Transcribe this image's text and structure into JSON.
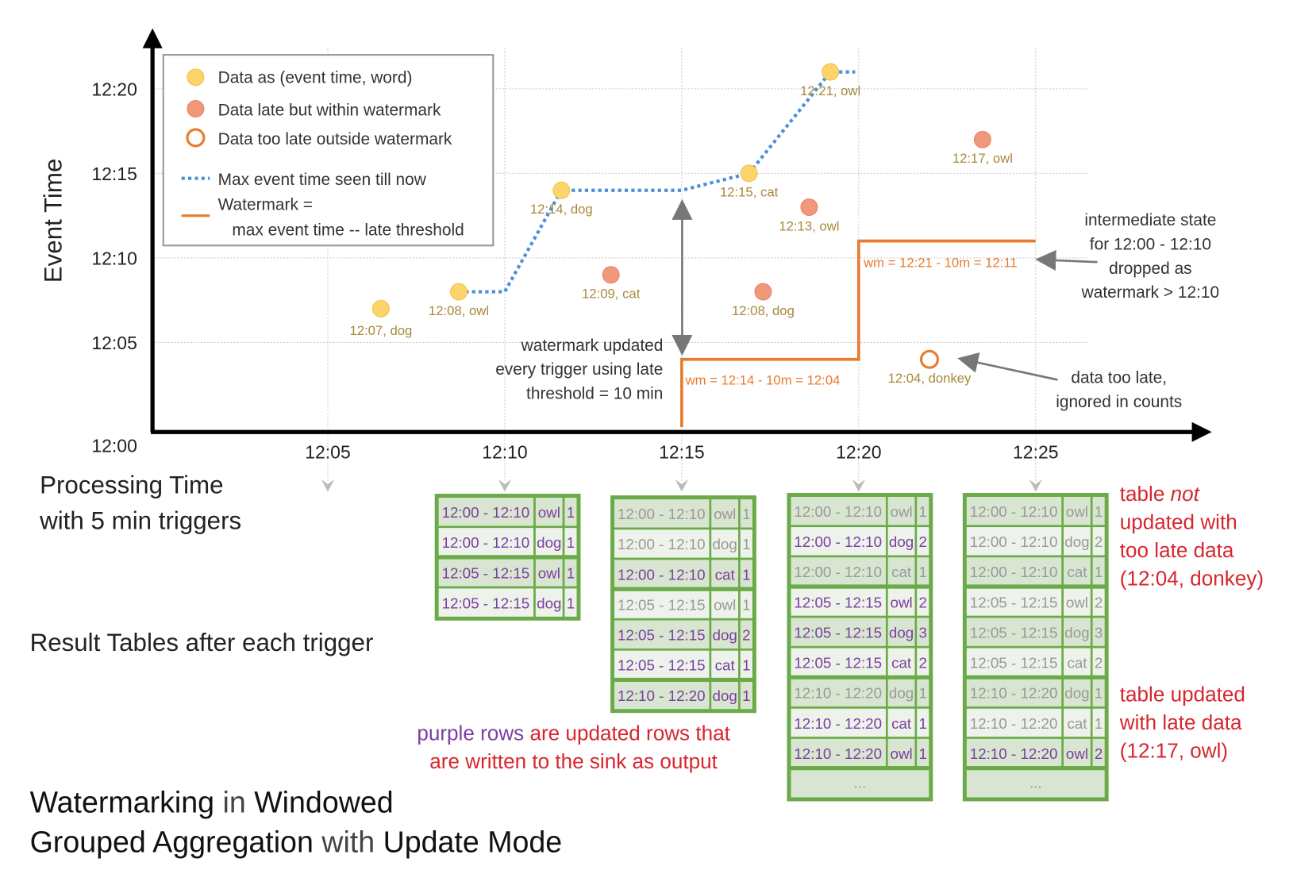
{
  "colors": {
    "on_time": "#fbd46b",
    "late": "#f0987a",
    "too_late_stroke": "#e87b2e",
    "max_line": "#4a90d9",
    "watermark": "#e87b2e",
    "table_border": "#6aaa48",
    "row_dark": "#d8e5d0",
    "row_light": "#edf2ea",
    "updated_text": "#7b3fa0",
    "stale_text": "#999999",
    "note_red": "#d7262e"
  },
  "axes": {
    "y_label": "Event Time",
    "y_ticks": [
      "12:00",
      "12:05",
      "12:10",
      "12:15",
      "12:20"
    ],
    "x_ticks": [
      "12:05",
      "12:10",
      "12:15",
      "12:20",
      "12:25"
    ],
    "x_label_line1": "Processing Time",
    "x_label_line2": "with 5 min triggers"
  },
  "legend": {
    "on_time": "Data as (event time, word)",
    "late": "Data late but within watermark",
    "too_late": "Data too late outside watermark",
    "max_line": "Max event time seen till now",
    "watermark_1": "Watermark =",
    "watermark_2": "max event time -- late threshold"
  },
  "points": [
    {
      "proc": "12:06:30",
      "event": "12:07",
      "label": "12:07, dog",
      "kind": "on_time"
    },
    {
      "proc": "12:08:42",
      "event": "12:08",
      "label": "12:08, owl",
      "kind": "on_time"
    },
    {
      "proc": "12:11:36",
      "event": "12:14",
      "label": "12:14, dog",
      "kind": "on_time"
    },
    {
      "proc": "12:13:00",
      "event": "12:09",
      "label": "12:09, cat",
      "kind": "late"
    },
    {
      "proc": "12:16:54",
      "event": "12:15",
      "label": "12:15, cat",
      "kind": "on_time"
    },
    {
      "proc": "12:17:18",
      "event": "12:08",
      "label": "12:08, dog",
      "kind": "late"
    },
    {
      "proc": "12:18:36",
      "event": "12:13",
      "label": "12:13, owl",
      "kind": "late"
    },
    {
      "proc": "12:19:12",
      "event": "12:21",
      "label": "12:21, owl",
      "kind": "on_time"
    },
    {
      "proc": "12:22:00",
      "event": "12:04",
      "label": "12:04, donkey",
      "kind": "too_late"
    },
    {
      "proc": "12:23:30",
      "event": "12:17",
      "label": "12:17, owl",
      "kind": "late"
    }
  ],
  "max_event_line": [
    [
      "12:08:42",
      "12:08"
    ],
    [
      "12:10",
      "12:08"
    ],
    [
      "12:11:36",
      "12:14"
    ],
    [
      "12:15",
      "12:14"
    ],
    [
      "12:16:54",
      "12:15"
    ],
    [
      "12:19:12",
      "12:21"
    ],
    [
      "12:19:54",
      "12:21"
    ]
  ],
  "watermark_line": [
    [
      "12:15",
      "12:00"
    ],
    [
      "12:15",
      "12:04"
    ],
    [
      "12:20",
      "12:04"
    ],
    [
      "12:20",
      "12:11"
    ],
    [
      "12:25",
      "12:11"
    ]
  ],
  "annotations": {
    "wm1": "wm = 12:14 - 10m = 12:04",
    "wm2": "wm = 12:21 - 10m = 12:11",
    "wm_updated": [
      "watermark updated",
      "every trigger using late",
      "threshold = 10 min"
    ],
    "intermediate": [
      "intermediate state",
      "for 12:00 - 12:10",
      "dropped as",
      "watermark > 12:10"
    ],
    "too_late": [
      "data too late,",
      "ignored in counts"
    ],
    "result_tables": "Result Tables after each trigger",
    "purple_rows": "purple rows",
    "purple_rest1": " are updated rows that",
    "purple_rest2": "are written to the sink as output",
    "not_updated": {
      "l1a": "table ",
      "l1b": "not",
      "l2": "updated with",
      "l3": "too late data",
      "l4": "(12:04, donkey)"
    },
    "updated": [
      "table updated",
      "with late data",
      "(12:17, owl)"
    ]
  },
  "title": {
    "w1": "Watermarking",
    "w2": " in ",
    "w3": "Windowed",
    "w4": "Grouped Aggregation",
    "w5": " with ",
    "w6": "Update Mode"
  },
  "tables": [
    {
      "trigger": "12:10",
      "rows": [
        [
          "12:00 - 12:10",
          "owl",
          "1",
          true
        ],
        [
          "12:00 - 12:10",
          "dog",
          "1",
          true
        ],
        [
          "12:05 - 12:15",
          "owl",
          "1",
          true
        ],
        [
          "12:05 - 12:15",
          "dog",
          "1",
          true
        ]
      ]
    },
    {
      "trigger": "12:15",
      "rows": [
        [
          "12:00 - 12:10",
          "owl",
          "1",
          false
        ],
        [
          "12:00 - 12:10",
          "dog",
          "1",
          false
        ],
        [
          "12:00 - 12:10",
          "cat",
          "1",
          true
        ],
        [
          "12:05 - 12:15",
          "owl",
          "1",
          false
        ],
        [
          "12:05 - 12:15",
          "dog",
          "2",
          true
        ],
        [
          "12:05 - 12:15",
          "cat",
          "1",
          true
        ],
        [
          "12:10 - 12:20",
          "dog",
          "1",
          true
        ]
      ]
    },
    {
      "trigger": "12:20",
      "more": "...",
      "rows": [
        [
          "12:00 - 12:10",
          "owl",
          "1",
          false
        ],
        [
          "12:00 - 12:10",
          "dog",
          "2",
          true
        ],
        [
          "12:00 - 12:10",
          "cat",
          "1",
          false
        ],
        [
          "12:05 - 12:15",
          "owl",
          "2",
          true
        ],
        [
          "12:05 - 12:15",
          "dog",
          "3",
          true
        ],
        [
          "12:05 - 12:15",
          "cat",
          "2",
          true
        ],
        [
          "12:10 - 12:20",
          "dog",
          "1",
          false
        ],
        [
          "12:10 - 12:20",
          "cat",
          "1",
          true
        ],
        [
          "12:10 - 12:20",
          "owl",
          "1",
          true
        ]
      ]
    },
    {
      "trigger": "12:25",
      "more": "...",
      "rows": [
        [
          "12:00 - 12:10",
          "owl",
          "1",
          false
        ],
        [
          "12:00 - 12:10",
          "dog",
          "2",
          false
        ],
        [
          "12:00 - 12:10",
          "cat",
          "1",
          false
        ],
        [
          "12:05 - 12:15",
          "owl",
          "2",
          false
        ],
        [
          "12:05 - 12:15",
          "dog",
          "3",
          false
        ],
        [
          "12:05 - 12:15",
          "cat",
          "2",
          false
        ],
        [
          "12:10 - 12:20",
          "dog",
          "1",
          false
        ],
        [
          "12:10 - 12:20",
          "cat",
          "1",
          false
        ],
        [
          "12:10 - 12:20",
          "owl",
          "2",
          true
        ]
      ]
    }
  ]
}
